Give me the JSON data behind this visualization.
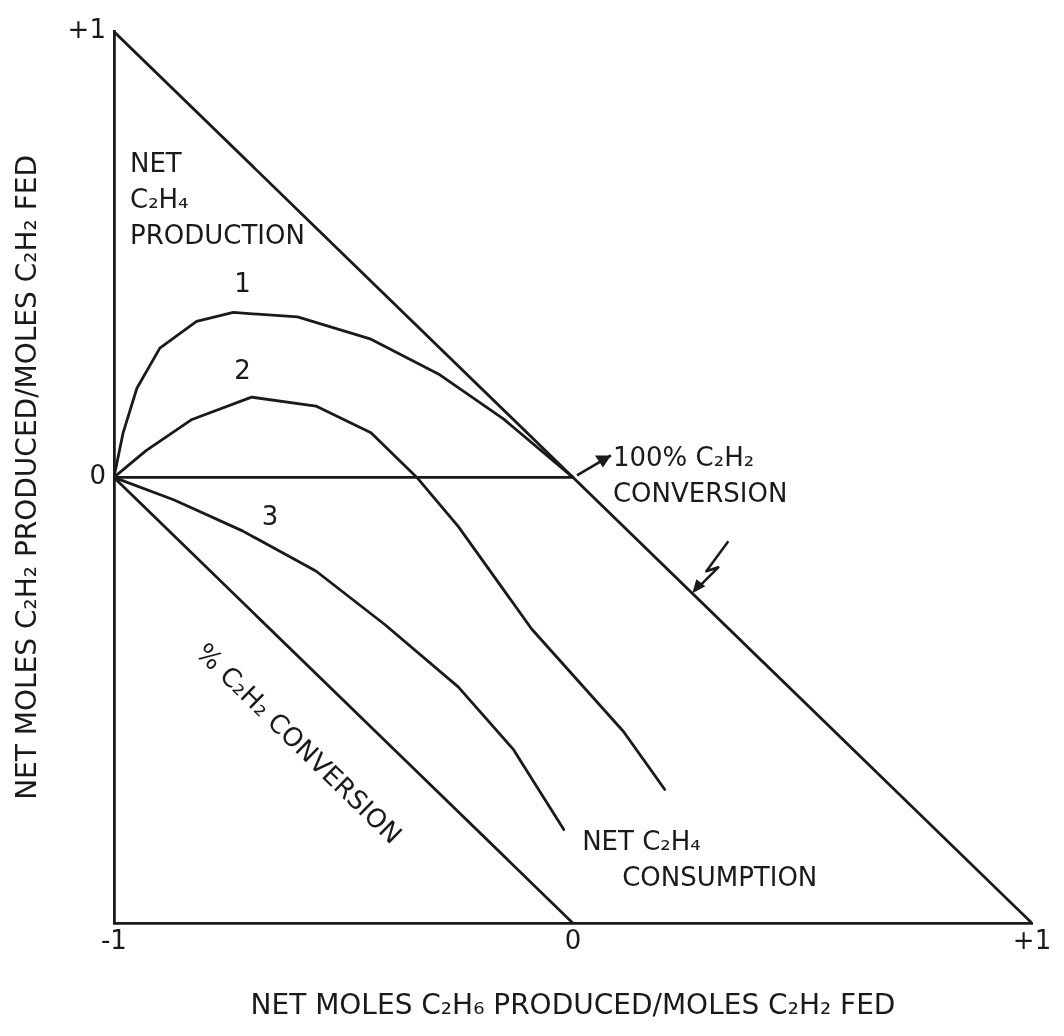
{
  "chart_data": {
    "type": "line",
    "xlabel": "NET MOLES C₂H₆ PRODUCED/MOLES C₂H₂ FED",
    "ylabel": "NET MOLES C₂H₂ PRODUCED/MOLES C₂H₂ FED",
    "xlim": [
      -1,
      1
    ],
    "ylim": [
      -1,
      1
    ],
    "xticks": [
      -1,
      0,
      {
        "value": 1,
        "label": "+1"
      }
    ],
    "yticks": [
      0,
      {
        "value": 1,
        "label": "+1"
      }
    ],
    "grid": false,
    "legend": false,
    "marker": "none",
    "line_style": "solid",
    "annotations": [
      "NET C₂H₄ PRODUCTION",
      {
        "text": "100% C₂H₂ CONVERSION",
        "x": 0,
        "y": 0
      },
      "% C₂H₂ CONVERSION",
      "NET C₂H₄ CONSUMPTION"
    ],
    "series": [
      {
        "color": "#1a1a1a",
        "x": [
          -1,
          1
        ],
        "values": [
          1,
          -1
        ]
      },
      {
        "color": "#1a1a1a",
        "x": [
          -1,
          0
        ],
        "values": [
          0,
          0
        ]
      },
      {
        "color": "#1a1a1a",
        "x": [
          -1,
          0
        ],
        "values": [
          0,
          -1
        ]
      },
      {
        "name": "1",
        "color": "#1a1a1a",
        "x": [
          -1,
          -0.98,
          -0.95,
          -0.9,
          -0.82,
          -0.74,
          -0.6,
          -0.44,
          -0.29,
          -0.15,
          0
        ],
        "values": [
          0,
          0.1,
          0.2,
          0.29,
          0.35,
          0.37,
          0.36,
          0.31,
          0.23,
          0.13,
          0
        ]
      },
      {
        "name": "2",
        "color": "#1a1a1a",
        "x": [
          -1,
          -0.93,
          -0.83,
          -0.7,
          -0.56,
          -0.44,
          -0.34,
          -0.25,
          -0.09,
          0.11,
          0.2
        ],
        "values": [
          0,
          0.06,
          0.13,
          0.18,
          0.16,
          0.1,
          0,
          -0.11,
          -0.34,
          -0.57,
          -0.7
        ]
      },
      {
        "name": "3",
        "color": "#1a1a1a",
        "x": [
          -1,
          -0.87,
          -0.72,
          -0.56,
          -0.41,
          -0.25,
          -0.13,
          -0.02
        ],
        "values": [
          0,
          -0.05,
          -0.12,
          -0.21,
          -0.33,
          -0.47,
          -0.61,
          -0.79
        ]
      }
    ]
  }
}
